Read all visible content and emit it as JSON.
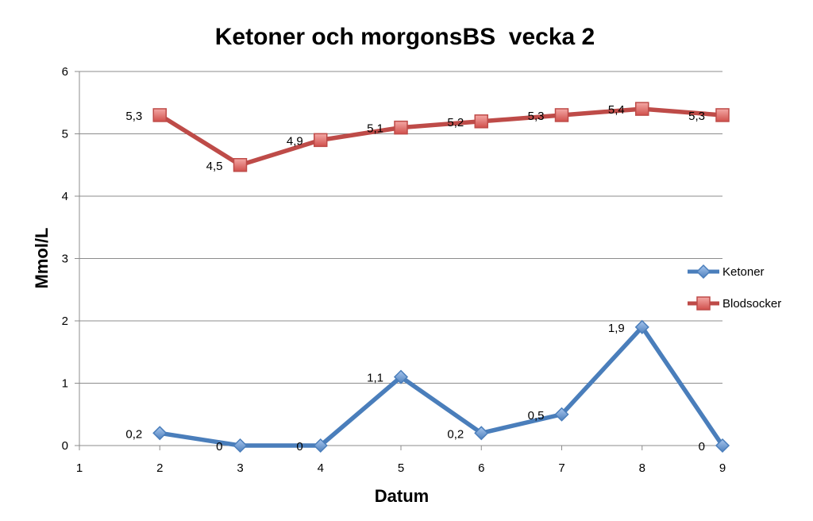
{
  "chart_data": {
    "type": "line",
    "title": "Ketoner och morgonsBS  vecka 2",
    "xlabel": "Datum",
    "ylabel": "Mmol/L",
    "xlim": [
      1,
      9
    ],
    "ylim": [
      0,
      6
    ],
    "x_ticks": [
      "1",
      "2",
      "3",
      "4",
      "5",
      "6",
      "7",
      "8",
      "9"
    ],
    "y_ticks": [
      "0",
      "1",
      "2",
      "3",
      "4",
      "5",
      "6"
    ],
    "grid": true,
    "legend_position": "right",
    "series": [
      {
        "name": "Ketoner",
        "color": "#4a7ebb",
        "marker": "diamond",
        "x": [
          2,
          3,
          4,
          5,
          6,
          7,
          8,
          9
        ],
        "values": [
          0.2,
          0,
          0,
          1.1,
          0.2,
          0.5,
          1.9,
          0
        ],
        "labels": [
          "0,2",
          "0",
          "0",
          "1,1",
          "0,2",
          "0,5",
          "1,9",
          "0"
        ]
      },
      {
        "name": "Blodsocker",
        "color": "#be4b48",
        "marker": "square",
        "x": [
          2,
          3,
          4,
          5,
          6,
          7,
          8,
          9
        ],
        "values": [
          5.3,
          4.5,
          4.9,
          5.1,
          5.2,
          5.3,
          5.4,
          5.3
        ],
        "labels": [
          "5,3",
          "4,5",
          "4,9",
          "5,1",
          "5,2",
          "5,3",
          "5,4",
          "5,3"
        ]
      }
    ]
  }
}
